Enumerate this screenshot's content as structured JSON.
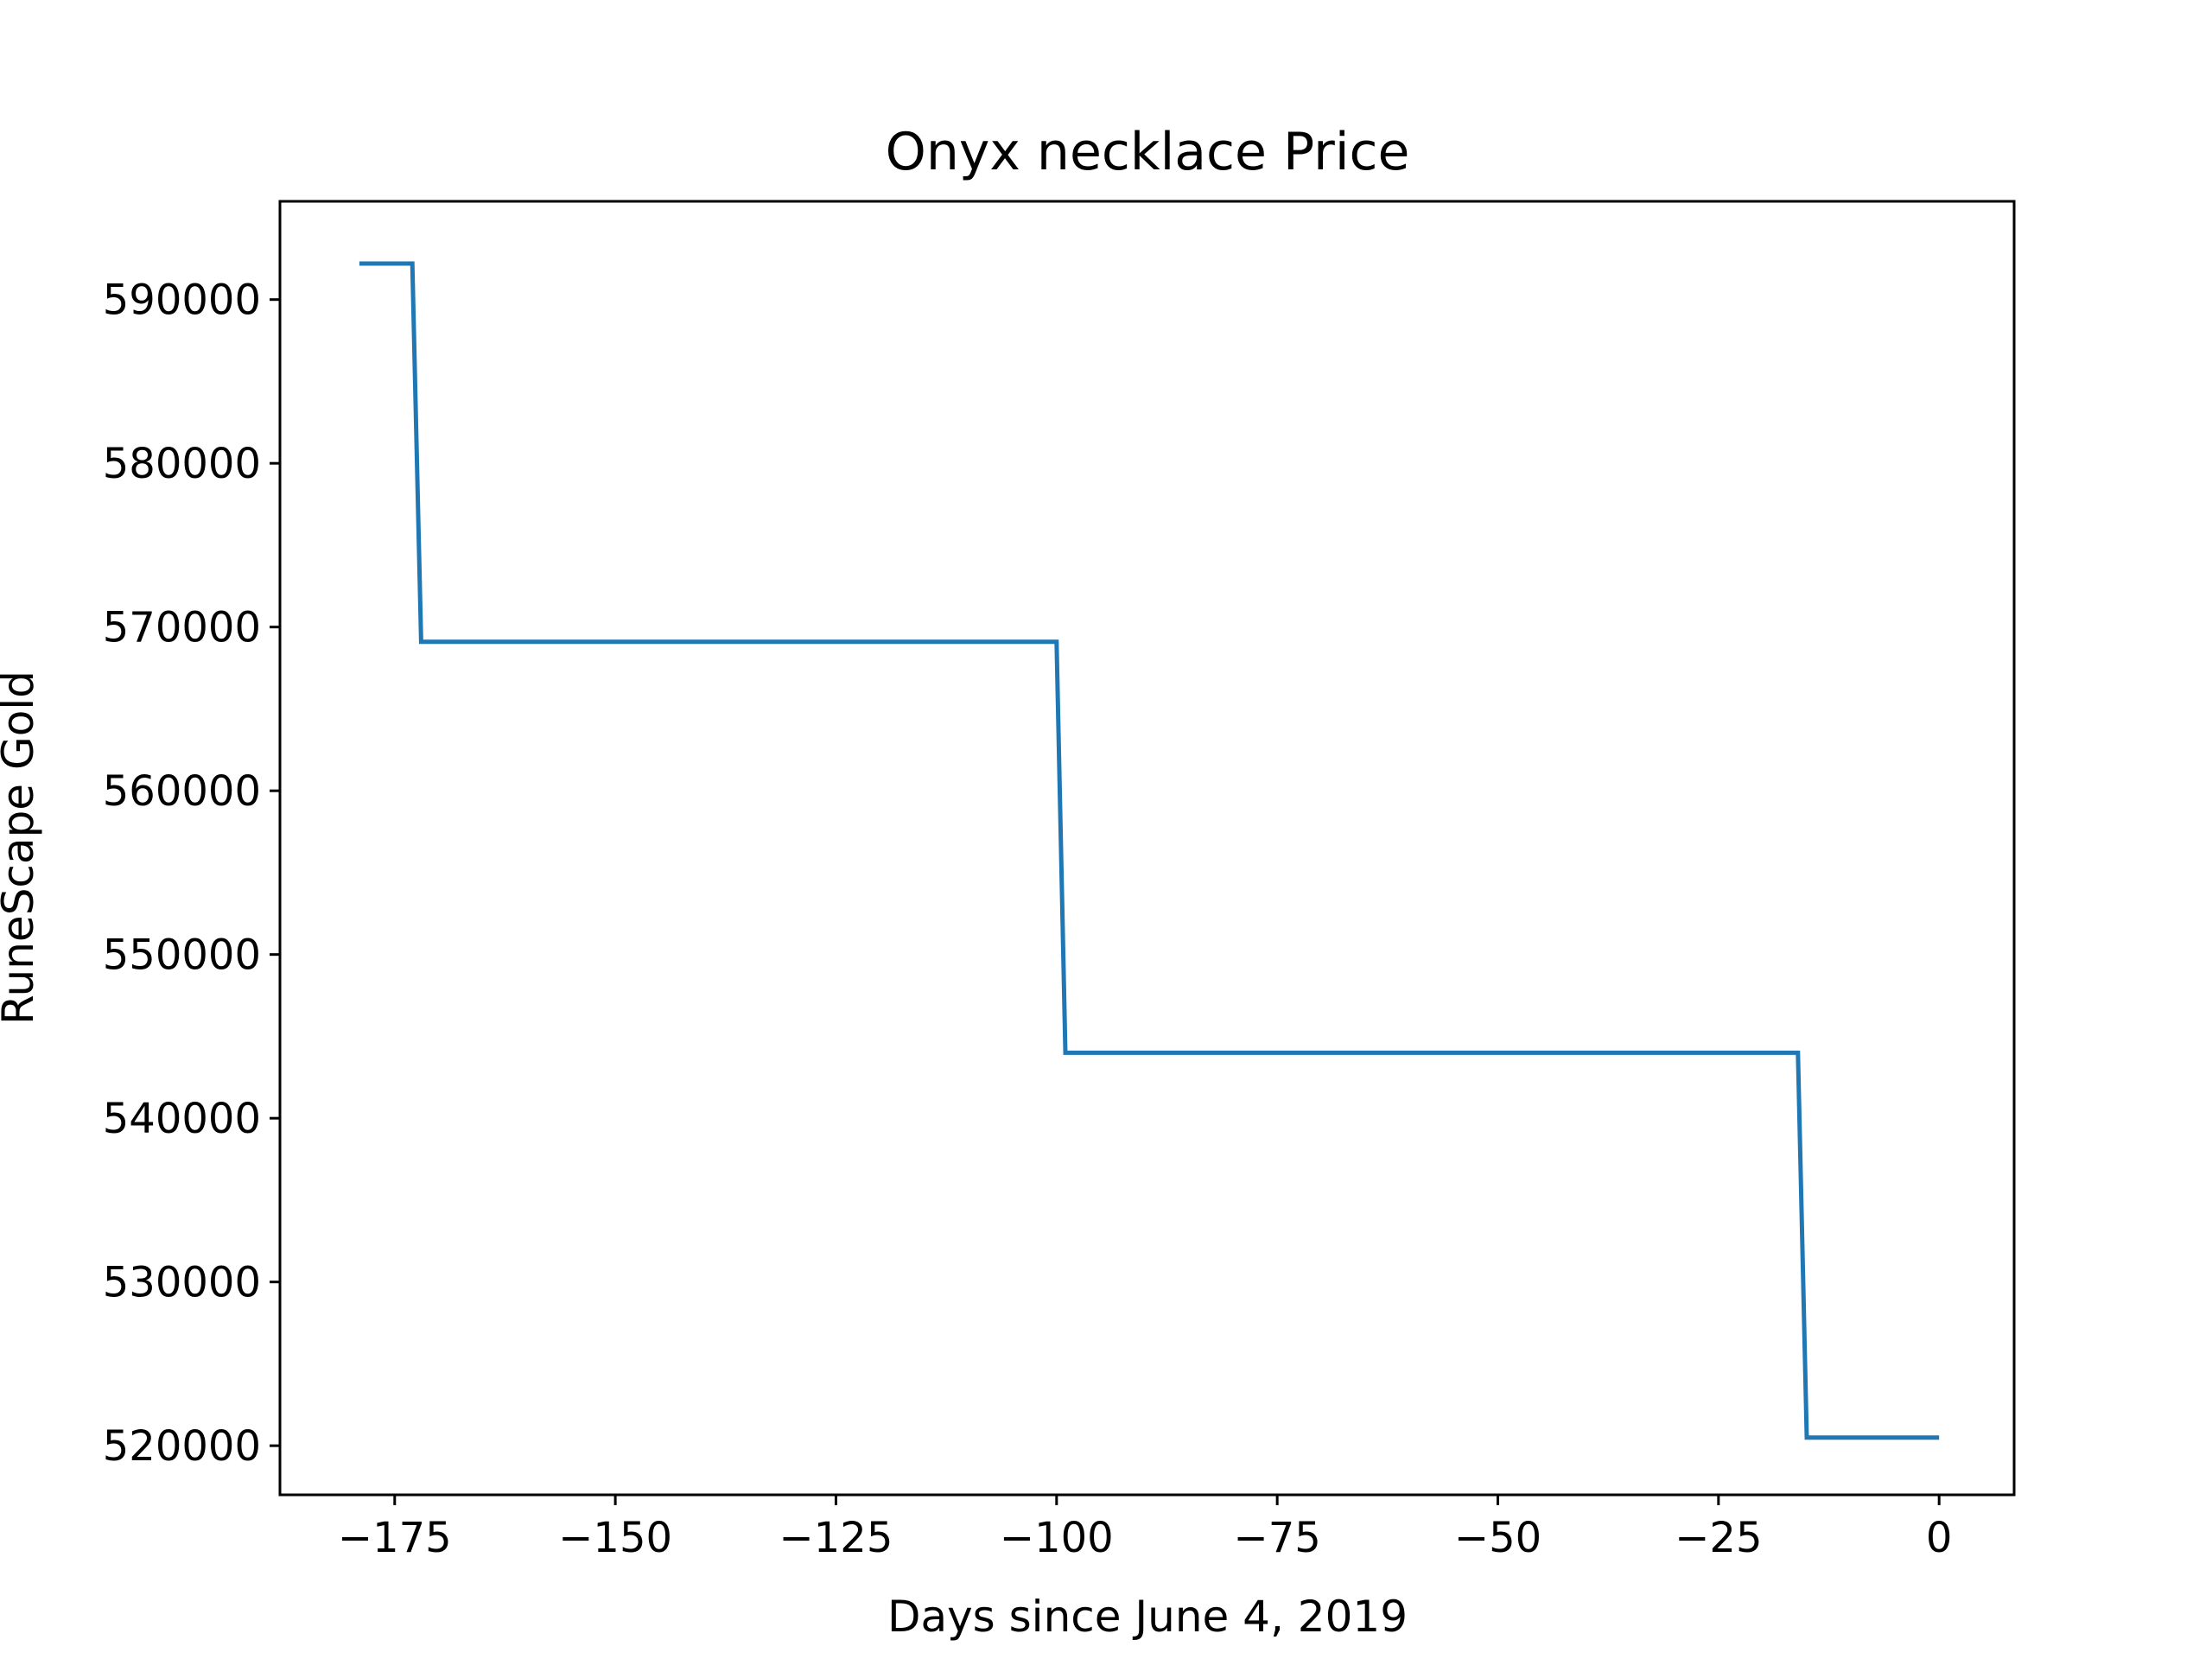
{
  "chart_data": {
    "type": "line",
    "title": "Onyx necklace Price",
    "xlabel": "Days since June 4, 2019",
    "ylabel": "RuneScape Gold",
    "xlim": [
      -188,
      8.5
    ],
    "ylim": [
      517000,
      596000
    ],
    "xticks": [
      -175,
      -150,
      -125,
      -100,
      -75,
      -50,
      -25,
      0
    ],
    "xtick_labels": [
      "−175",
      "−150",
      "−125",
      "−100",
      "−75",
      "−50",
      "−25",
      "0"
    ],
    "yticks": [
      520000,
      530000,
      540000,
      550000,
      560000,
      570000,
      580000,
      590000
    ],
    "ytick_labels": [
      "520000",
      "530000",
      "540000",
      "550000",
      "560000",
      "570000",
      "580000",
      "590000"
    ],
    "grid": false,
    "series": [
      {
        "color": "#1f77b4",
        "x": [
          -179,
          -173,
          -172,
          -100,
          -99,
          -16,
          -15,
          0
        ],
        "y": [
          592200,
          592200,
          569100,
          569100,
          544000,
          544000,
          520500,
          520500
        ]
      }
    ]
  }
}
